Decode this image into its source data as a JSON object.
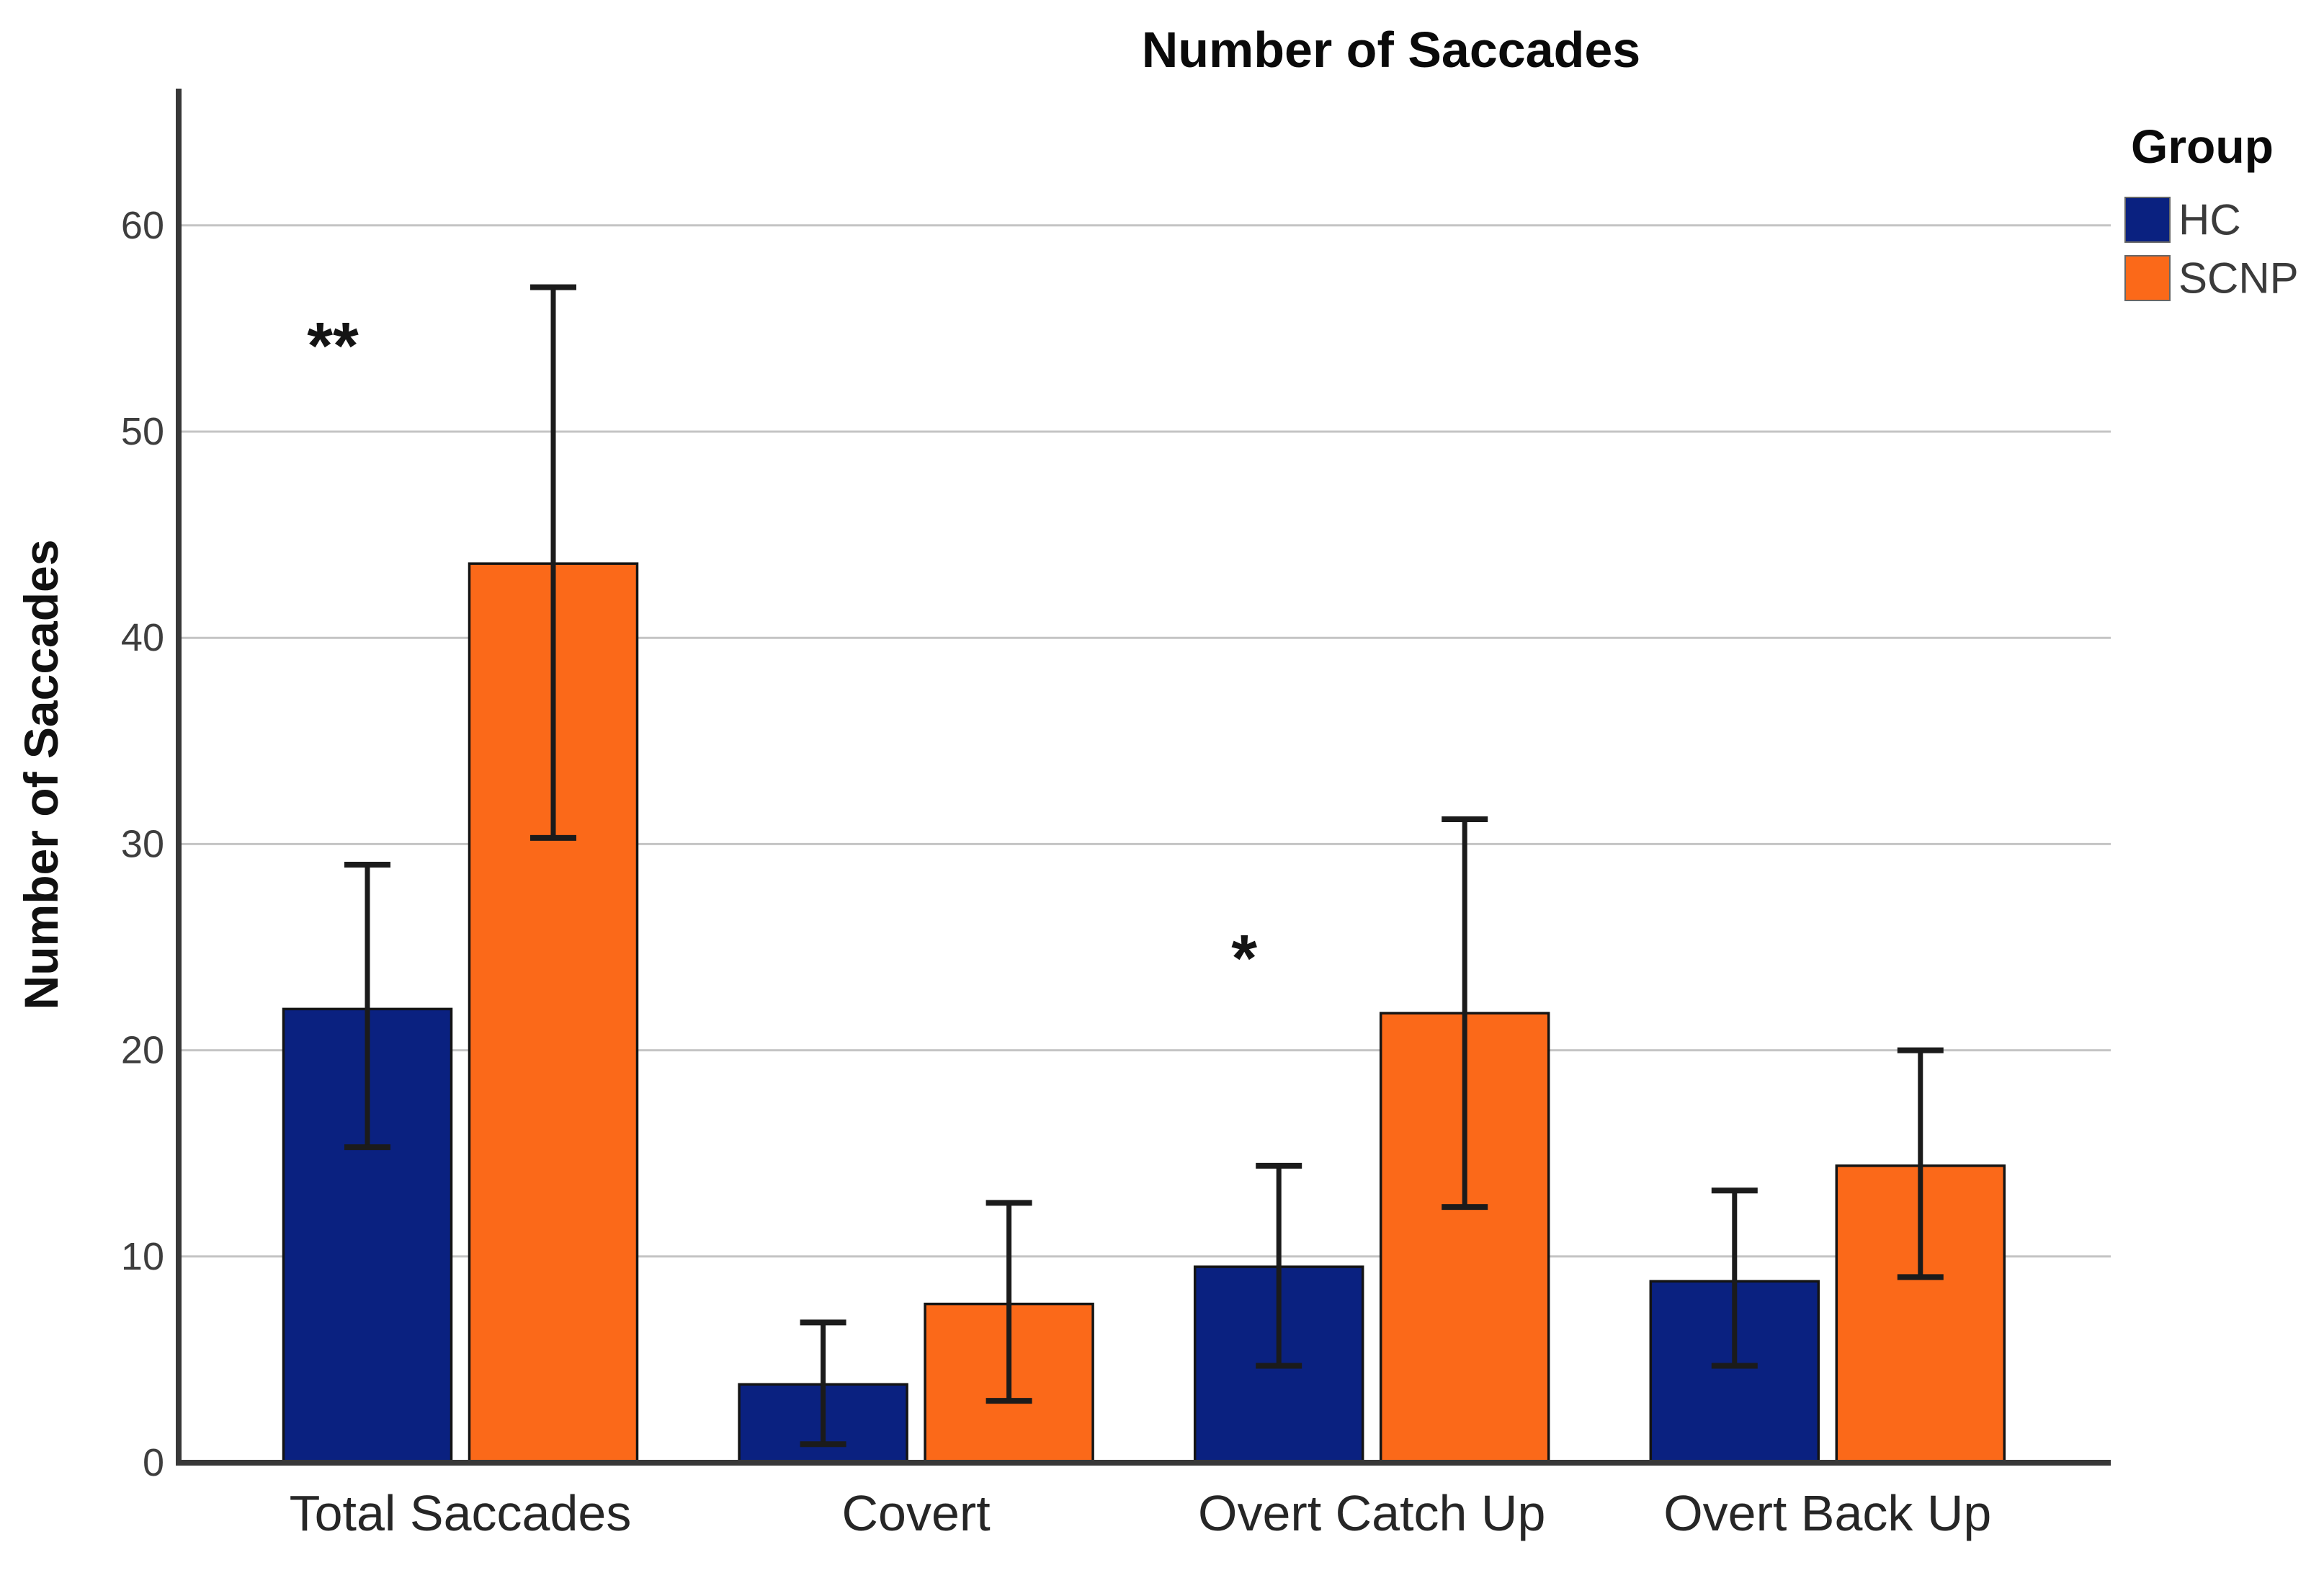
{
  "chart_data": {
    "type": "bar",
    "title": "Number of Saccades",
    "ylabel": "Number of Saccades",
    "xlabel": "",
    "categories": [
      "Total Saccades",
      "Covert",
      "Overt Catch Up",
      "Overt Back Up"
    ],
    "series": [
      {
        "name": "HC",
        "color": "#0A2180",
        "values": [
          22.0,
          3.8,
          9.5,
          8.8
        ],
        "error_low": [
          15.3,
          0.9,
          4.7,
          4.7
        ],
        "error_high": [
          29.0,
          6.8,
          14.4,
          13.2
        ]
      },
      {
        "name": "SCNP",
        "color": "#FB6919",
        "values": [
          43.6,
          7.7,
          21.8,
          14.4
        ],
        "error_low": [
          30.3,
          3.0,
          12.4,
          9.0
        ],
        "error_high": [
          57.0,
          12.6,
          31.2,
          20.0
        ]
      }
    ],
    "yticks": [
      0,
      10,
      20,
      30,
      40,
      50,
      60
    ],
    "ylim": [
      0,
      66.5
    ],
    "grid": "horizontal",
    "legend_title": "Group",
    "legend_position": "top-right",
    "annotations": [
      {
        "text": "**",
        "category_index": 0,
        "series": "HC",
        "y": 54.8
      },
      {
        "text": "*",
        "category_index": 2,
        "series": "HC",
        "y": 25.1
      }
    ],
    "colors": {
      "hc_bar": "#0A2180",
      "scnp_bar": "#FB6919",
      "bar_outline": "#141414",
      "error_bar": "#1B1B1B",
      "gridline": "#C4C4C4",
      "axis": "#383838",
      "tick_text": "#3E3E3E",
      "category_text": "#262626",
      "title_text": "#0A0A0A"
    }
  }
}
